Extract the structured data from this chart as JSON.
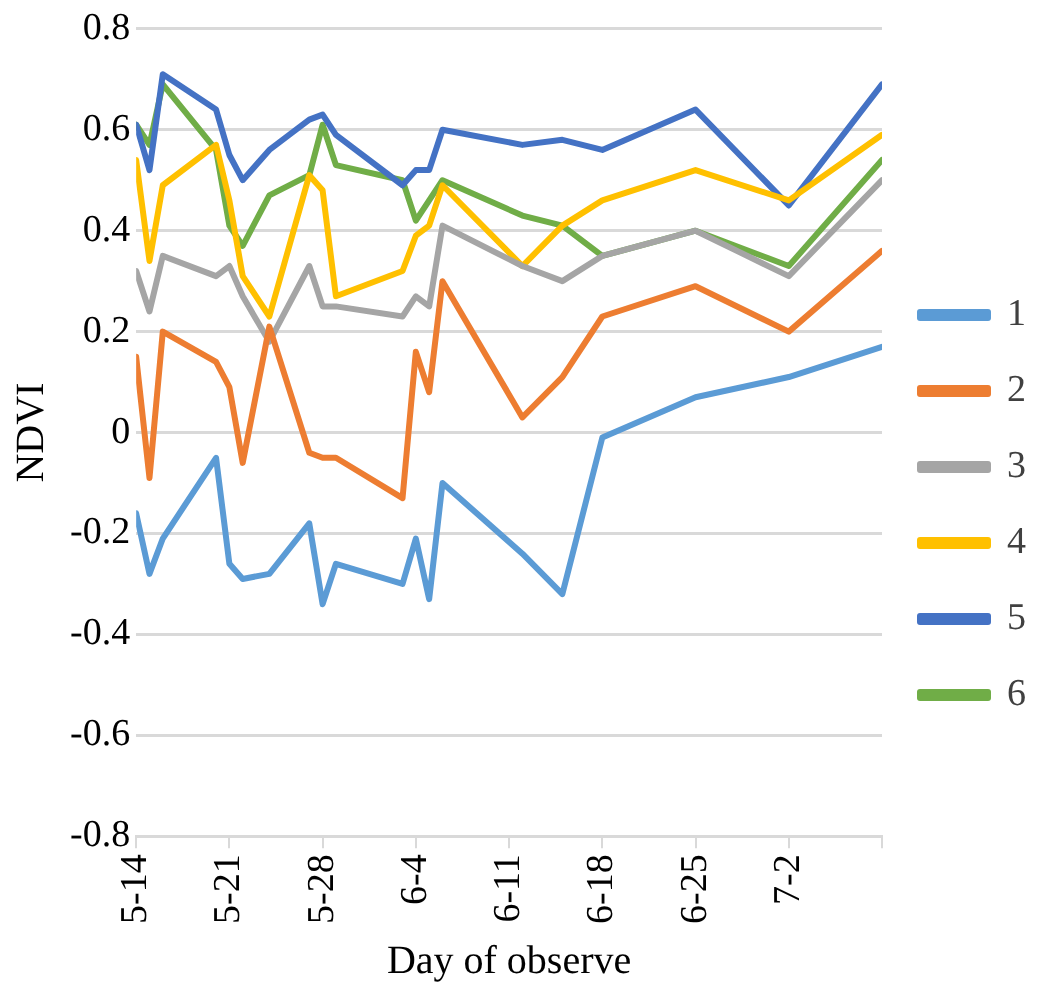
{
  "chart_data": {
    "type": "line",
    "xlabel": "Day of observe",
    "ylabel": "NDVI",
    "x": [
      "--05-14",
      "--05-15",
      "--05-16",
      "--05-20",
      "--05-21",
      "--05-22",
      "--05-24",
      "--05-27",
      "--05-28",
      "--05-29",
      "--06-03",
      "--06-04",
      "--06-05",
      "--06-06",
      "--06-12",
      "--06-15",
      "--06-18",
      "--06-25",
      "--07-02",
      "--07-09"
    ],
    "series": [
      {
        "name": "1",
        "color": "#5b9bd5",
        "values": [
          -0.16,
          -0.28,
          -0.21,
          -0.05,
          -0.26,
          -0.29,
          -0.28,
          -0.18,
          -0.34,
          -0.26,
          -0.3,
          -0.21,
          -0.33,
          -0.1,
          -0.24,
          -0.32,
          -0.01,
          0.07,
          0.11,
          0.17
        ]
      },
      {
        "name": "2",
        "color": "#ed7d31",
        "values": [
          0.15,
          -0.09,
          0.2,
          0.14,
          0.09,
          -0.06,
          0.21,
          -0.04,
          -0.05,
          -0.05,
          -0.13,
          0.16,
          0.08,
          0.3,
          0.03,
          0.11,
          0.23,
          0.29,
          0.2,
          0.36
        ]
      },
      {
        "name": "3",
        "color": "#a5a5a5",
        "values": [
          0.32,
          0.24,
          0.35,
          0.31,
          0.33,
          0.27,
          0.18,
          0.33,
          0.25,
          0.25,
          0.23,
          0.27,
          0.25,
          0.41,
          0.33,
          0.3,
          0.35,
          0.4,
          0.31,
          0.5
        ]
      },
      {
        "name": "4",
        "color": "#ffc000",
        "values": [
          0.54,
          0.34,
          0.49,
          0.57,
          0.46,
          0.31,
          0.23,
          0.51,
          0.48,
          0.27,
          0.32,
          0.39,
          0.41,
          0.49,
          0.33,
          0.41,
          0.46,
          0.52,
          0.46,
          0.59
        ]
      },
      {
        "name": "5",
        "color": "#4472c4",
        "values": [
          0.61,
          0.52,
          0.71,
          0.64,
          0.55,
          0.5,
          0.56,
          0.62,
          0.63,
          0.59,
          0.49,
          0.52,
          0.52,
          0.6,
          0.57,
          0.58,
          0.56,
          0.64,
          0.45,
          0.69
        ]
      },
      {
        "name": "6",
        "color": "#70ad47",
        "values": [
          0.61,
          0.57,
          0.69,
          0.56,
          0.41,
          0.37,
          0.47,
          0.51,
          0.61,
          0.53,
          0.5,
          0.42,
          0.46,
          0.5,
          0.43,
          0.41,
          0.35,
          0.4,
          0.33,
          0.54
        ]
      }
    ],
    "xlim": [
      "--05-14",
      "--07-09"
    ],
    "xticks": [
      {
        "value": "--05-14",
        "label": "5-14"
      },
      {
        "value": "--05-21",
        "label": "5-21"
      },
      {
        "value": "--05-28",
        "label": "5-28"
      },
      {
        "value": "--06-04",
        "label": "6-4"
      },
      {
        "value": "--06-11",
        "label": "6-11"
      },
      {
        "value": "--06-18",
        "label": "6-18"
      },
      {
        "value": "--06-25",
        "label": "6-25"
      },
      {
        "value": "--07-02",
        "label": "7-2"
      },
      {
        "value": "--07-09",
        "label": null
      }
    ],
    "ylim": [
      -0.8,
      0.8
    ],
    "yticks": [
      -0.8,
      -0.6,
      -0.4,
      -0.2,
      0,
      0.2,
      0.4,
      0.6,
      0.8
    ],
    "grid": "y",
    "legend": "right",
    "marker": "none",
    "line_style": "solid"
  }
}
